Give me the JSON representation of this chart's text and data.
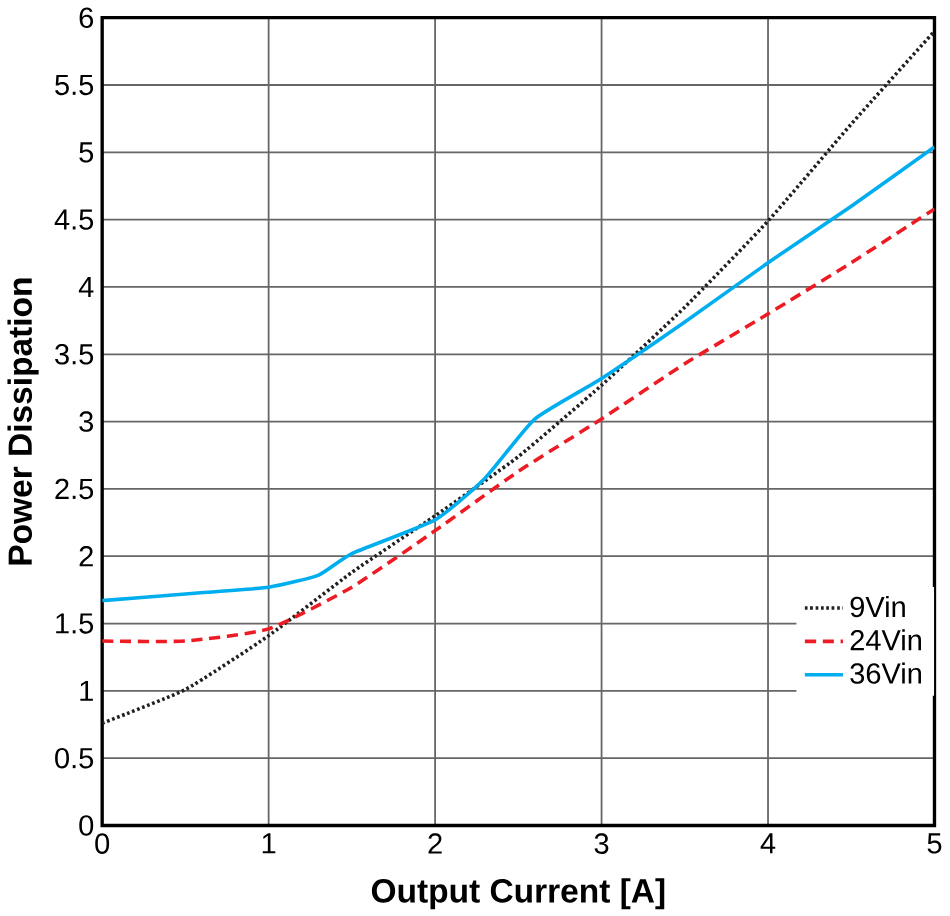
{
  "chart_data": {
    "type": "line",
    "xlabel": "Output Current [A]",
    "ylabel": "Power Dissipation",
    "x": [
      0,
      0.5,
      1,
      1.5,
      2,
      2.5,
      3,
      3.5,
      4,
      4.5,
      5
    ],
    "series": [
      {
        "name": "9Vin",
        "color": "#231f20",
        "line_style": "dotted",
        "values": [
          0.76,
          1.01,
          1.41,
          1.88,
          2.3,
          2.74,
          3.27,
          3.85,
          4.49,
          5.21,
          5.9
        ]
      },
      {
        "name": "24Vin",
        "color": "#ed1c24",
        "line_style": "dashed",
        "values": [
          1.37,
          1.37,
          1.46,
          1.77,
          2.19,
          2.63,
          3.02,
          3.43,
          3.8,
          4.18,
          4.58
        ]
      },
      {
        "name": "36Vin",
        "color": "#00aeef",
        "line_style": "solid",
        "x": [
          0,
          0.5,
          1,
          1.3,
          1.5,
          2,
          2.3,
          2.6,
          3,
          3.5,
          4,
          4.5,
          5
        ],
        "values": [
          1.67,
          1.72,
          1.77,
          1.86,
          2.02,
          2.27,
          2.58,
          3.02,
          3.32,
          3.74,
          4.18,
          4.6,
          5.04
        ]
      }
    ],
    "xlim": [
      0,
      5
    ],
    "ylim": [
      0,
      6
    ],
    "xticks": [
      0,
      1,
      2,
      3,
      4,
      5
    ],
    "yticks": [
      0,
      0.5,
      1,
      1.5,
      2,
      2.5,
      3,
      3.5,
      4,
      4.5,
      5,
      5.5,
      6
    ],
    "grid": true,
    "legend": "bottom right",
    "marker": "none"
  }
}
